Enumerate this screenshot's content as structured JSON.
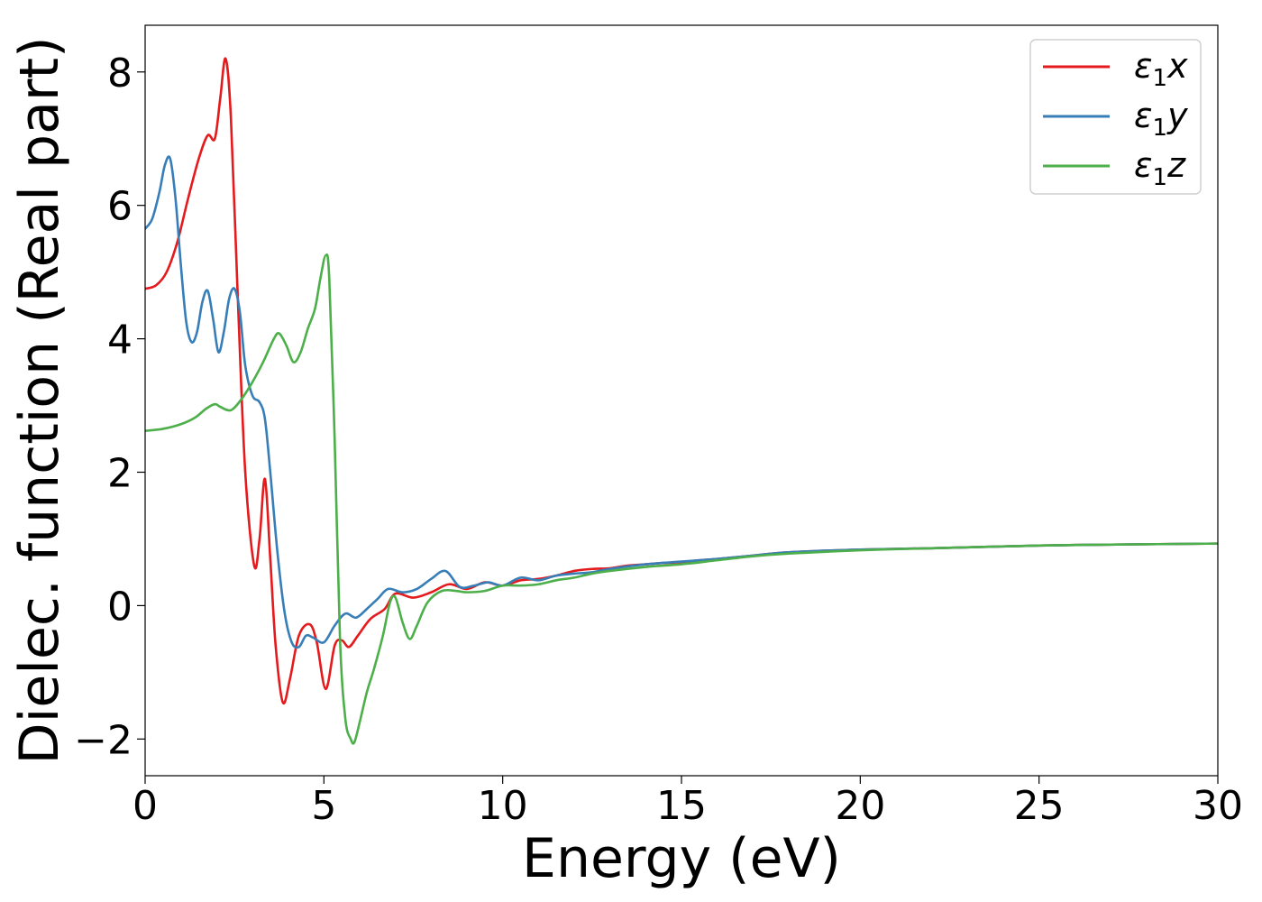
{
  "chart_data": {
    "type": "line",
    "title": "",
    "xlabel": "Energy (eV)",
    "ylabel": "Dielec. function (Real part)",
    "xlim": [
      0,
      30
    ],
    "ylim": [
      -2.55,
      8.7
    ],
    "xticks": [
      0,
      5,
      10,
      15,
      20,
      25,
      30
    ],
    "yticks": [
      -2,
      0,
      2,
      4,
      6,
      8
    ],
    "grid": false,
    "legend_position": "top-right",
    "series": [
      {
        "name": "ε1x",
        "legend_base": "ε",
        "legend_sub": "1",
        "legend_suffix": "x",
        "color": "#e41a1c",
        "x": [
          0,
          0.3,
          0.6,
          0.9,
          1.2,
          1.5,
          1.75,
          1.95,
          2.1,
          2.25,
          2.4,
          2.6,
          2.8,
          3.05,
          3.2,
          3.35,
          3.5,
          3.65,
          3.85,
          4.05,
          4.3,
          4.6,
          4.8,
          5.05,
          5.3,
          5.5,
          5.7,
          5.95,
          6.3,
          6.7,
          7.0,
          7.5,
          8.0,
          8.5,
          9.0,
          9.5,
          10.0,
          10.5,
          11.0,
          11.5,
          12.0,
          12.5,
          13.0,
          13.5,
          14.0,
          14.5,
          15.0,
          15.5,
          16.0,
          17.0,
          18.0,
          20.0,
          22.0,
          25.0,
          28.0,
          30.0
        ],
        "y": [
          4.75,
          4.8,
          5.0,
          5.45,
          6.1,
          6.7,
          7.05,
          7.0,
          7.6,
          8.2,
          7.3,
          4.5,
          2.0,
          0.6,
          1.0,
          1.9,
          0.7,
          -0.6,
          -1.45,
          -1.1,
          -0.45,
          -0.28,
          -0.55,
          -1.25,
          -0.6,
          -0.52,
          -0.62,
          -0.45,
          -0.2,
          -0.05,
          0.18,
          0.12,
          0.2,
          0.32,
          0.25,
          0.35,
          0.3,
          0.38,
          0.4,
          0.45,
          0.52,
          0.55,
          0.56,
          0.6,
          0.62,
          0.64,
          0.65,
          0.68,
          0.7,
          0.75,
          0.8,
          0.84,
          0.86,
          0.9,
          0.92,
          0.93
        ]
      },
      {
        "name": "ε1y",
        "legend_base": "ε",
        "legend_sub": "1",
        "legend_suffix": "y",
        "color": "#377eb8",
        "x": [
          0,
          0.2,
          0.4,
          0.55,
          0.7,
          0.85,
          1.0,
          1.15,
          1.3,
          1.45,
          1.6,
          1.75,
          1.9,
          2.05,
          2.2,
          2.35,
          2.5,
          2.65,
          2.8,
          3.0,
          3.2,
          3.35,
          3.5,
          3.7,
          3.9,
          4.1,
          4.3,
          4.5,
          4.7,
          5.0,
          5.3,
          5.6,
          5.9,
          6.2,
          6.5,
          6.8,
          7.2,
          7.6,
          8.0,
          8.4,
          8.8,
          9.2,
          9.6,
          10.0,
          10.5,
          11.0,
          11.5,
          12.0,
          12.5,
          13.0,
          14.0,
          15.0,
          16.0,
          17.0,
          18.0,
          20.0,
          22.0,
          25.0,
          28.0,
          30.0
        ],
        "y": [
          5.65,
          5.8,
          6.2,
          6.6,
          6.7,
          6.1,
          5.1,
          4.25,
          3.95,
          4.1,
          4.55,
          4.72,
          4.3,
          3.8,
          4.1,
          4.6,
          4.75,
          4.4,
          3.6,
          3.15,
          3.05,
          2.8,
          2.0,
          0.8,
          -0.1,
          -0.55,
          -0.62,
          -0.45,
          -0.48,
          -0.55,
          -0.3,
          -0.12,
          -0.18,
          -0.05,
          0.1,
          0.25,
          0.2,
          0.25,
          0.4,
          0.52,
          0.28,
          0.3,
          0.35,
          0.3,
          0.42,
          0.38,
          0.45,
          0.48,
          0.5,
          0.55,
          0.62,
          0.66,
          0.7,
          0.75,
          0.8,
          0.84,
          0.86,
          0.9,
          0.92,
          0.93
        ]
      },
      {
        "name": "ε1z",
        "legend_base": "ε",
        "legend_sub": "1",
        "legend_suffix": "z",
        "color": "#4daf4a",
        "x": [
          0,
          0.5,
          1.0,
          1.4,
          1.7,
          1.95,
          2.1,
          2.4,
          2.7,
          3.0,
          3.3,
          3.6,
          3.75,
          3.95,
          4.15,
          4.35,
          4.55,
          4.75,
          4.9,
          5.05,
          5.15,
          5.3,
          5.45,
          5.6,
          5.75,
          5.85,
          6.0,
          6.2,
          6.4,
          6.65,
          6.85,
          7.0,
          7.2,
          7.4,
          7.6,
          7.9,
          8.3,
          8.7,
          9.0,
          9.5,
          10.0,
          10.5,
          11.0,
          11.5,
          12.0,
          12.5,
          13.0,
          14.0,
          15.0,
          16.0,
          17.0,
          18.0,
          20.0,
          22.0,
          25.0,
          28.0,
          30.0
        ],
        "y": [
          2.62,
          2.65,
          2.72,
          2.82,
          2.95,
          3.02,
          2.98,
          2.93,
          3.1,
          3.35,
          3.65,
          4.0,
          4.08,
          3.9,
          3.65,
          3.8,
          4.15,
          4.45,
          4.9,
          5.25,
          4.9,
          2.5,
          -0.5,
          -1.7,
          -2.0,
          -2.05,
          -1.75,
          -1.3,
          -0.95,
          -0.45,
          0.05,
          0.12,
          -0.25,
          -0.5,
          -0.3,
          0.05,
          0.22,
          0.22,
          0.2,
          0.22,
          0.3,
          0.3,
          0.32,
          0.38,
          0.42,
          0.48,
          0.52,
          0.58,
          0.62,
          0.68,
          0.74,
          0.78,
          0.83,
          0.86,
          0.9,
          0.92,
          0.93
        ]
      }
    ]
  }
}
